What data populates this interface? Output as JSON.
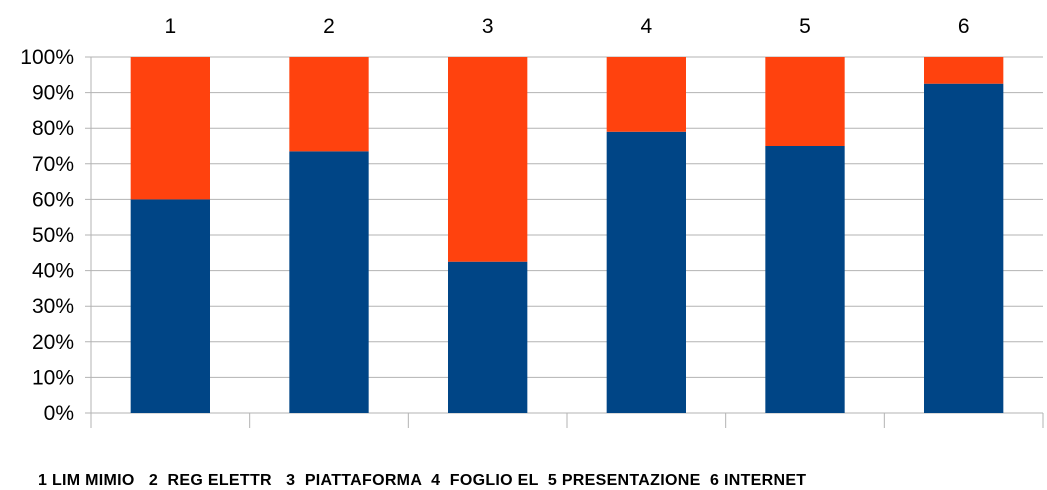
{
  "chart_data": {
    "type": "bar",
    "stacked": true,
    "percent_stacked": true,
    "categories": [
      "1",
      "2",
      "3",
      "4",
      "5",
      "6"
    ],
    "category_axis_position": "top",
    "series": [
      {
        "values": [
          60,
          73.5,
          42.5,
          79,
          75,
          92.5
        ],
        "color": "#004586"
      },
      {
        "values": [
          40,
          26.5,
          57.5,
          21,
          25,
          7.5
        ],
        "color": "#ff420e"
      }
    ],
    "ylim": [
      0,
      100
    ],
    "yticks": [
      "0%",
      "10%",
      "20%",
      "30%",
      "40%",
      "50%",
      "60%",
      "70%",
      "80%",
      "90%",
      "100%"
    ],
    "grid": true,
    "legend": "none"
  },
  "footer_caption": "1 LIM MIMIO   2  REG ELETTR   3  PIATTAFORMA  4  FOGLIO EL  5 PRESENTAZIONE  6 INTERNET"
}
